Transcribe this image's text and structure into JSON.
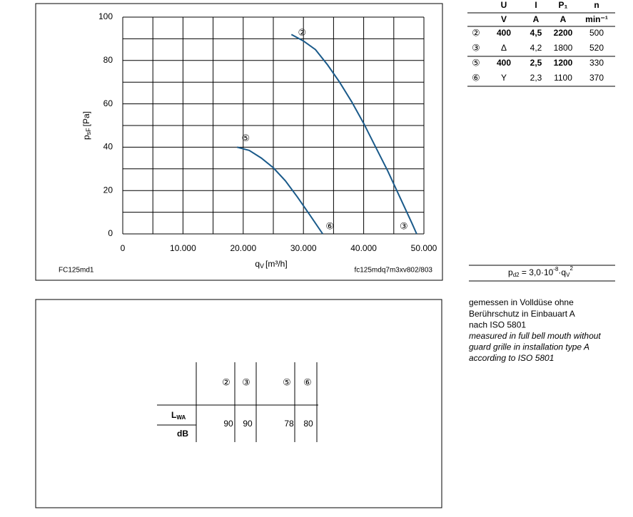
{
  "chart_data": {
    "type": "line",
    "xlabel": {
      "symbol": "q",
      "sub": "V",
      "unit": "[m³/h]"
    },
    "ylabel": {
      "symbol": "p",
      "sub": "sF",
      "unit": "[Pa]"
    },
    "xlim": [
      0,
      50000
    ],
    "ylim": [
      0,
      100
    ],
    "xticks": [
      0,
      {
        "value": 10000,
        "label": "10.000"
      },
      {
        "value": 20000,
        "label": "20.000"
      },
      {
        "value": 30000,
        "label": "30.000"
      },
      {
        "value": 40000,
        "label": "40.000"
      },
      {
        "value": 50000,
        "label": "50.000"
      }
    ],
    "yticks": [
      0,
      20,
      40,
      60,
      80,
      100
    ],
    "grid": true,
    "series": [
      {
        "name": "②",
        "end_label": "③",
        "color": "#1a5a8a",
        "x": [
          28000,
          30000,
          32000,
          34000,
          36000,
          38000,
          40000,
          42000,
          44000,
          46000,
          48000,
          48800
        ],
        "values": [
          92,
          89,
          85,
          78,
          70,
          61,
          51,
          40,
          29,
          17,
          5,
          0
        ]
      },
      {
        "name": "⑤",
        "end_label": "⑥",
        "color": "#1a5a8a",
        "x": [
          19000,
          21000,
          23000,
          25000,
          27000,
          29000,
          31000,
          33200
        ],
        "values": [
          40,
          38.5,
          35,
          30.5,
          24.5,
          17,
          9,
          0
        ]
      }
    ],
    "footer_left": "FC125md1",
    "footer_right": "fc125mdq7m3xv802/803"
  },
  "operating_table": {
    "header": [
      [
        "U",
        "I",
        "P₁",
        "n"
      ],
      [
        "V",
        "A",
        "A",
        "min⁻¹"
      ]
    ],
    "rows": [
      [
        "②",
        "400",
        "4,5",
        "2200",
        "500"
      ],
      [
        "③",
        "Δ",
        "4,2",
        "1800",
        "520"
      ],
      [
        "⑤",
        "400",
        "2,5",
        "1200",
        "330"
      ],
      [
        "⑥",
        "Y",
        "2,3",
        "1100",
        "370"
      ]
    ],
    "bold": [
      true,
      false,
      true,
      false
    ]
  },
  "formula": {
    "p": "p",
    "sub1": "d2",
    "mid": " = 3,0·10",
    "sup1": "-8",
    "dot": "·q",
    "sub2": "V",
    "sup2": "2"
  },
  "notes": {
    "lines": [
      "gemessen in Volldüse ohne",
      "Berührschutz in Einbauart A",
      "nach ISO 5801",
      "measured in full bell mouth without",
      "guard grille in installation type A",
      "according to ISO 5801"
    ],
    "italic": [
      false,
      false,
      false,
      true,
      true,
      true
    ]
  },
  "noise_table": {
    "columns": [
      "②",
      "③",
      "⑤",
      "⑥"
    ],
    "row_symbol": "L",
    "row_sub": "WA",
    "row_unit": "dB",
    "values": [
      90,
      90,
      78,
      80
    ]
  }
}
